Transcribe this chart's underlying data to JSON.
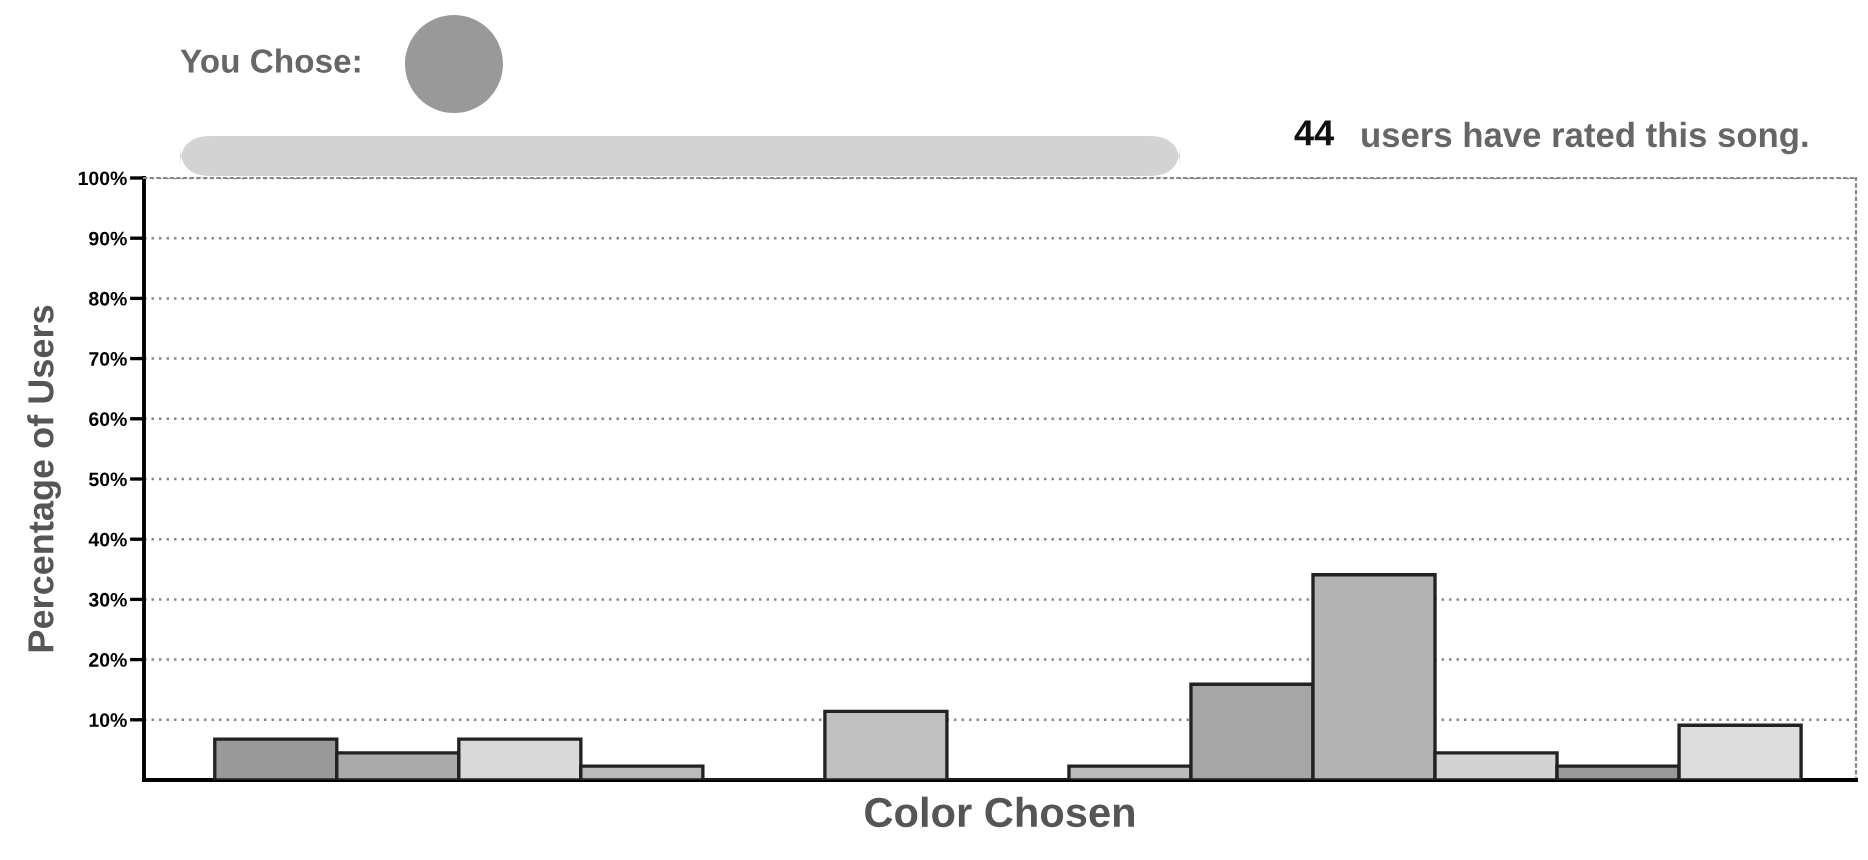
{
  "chart_data": {
    "type": "bar",
    "xlabel": "Color Chosen",
    "ylabel": "Percentage of Users",
    "annotations": [
      "You Chose:",
      "44",
      "users have rated this song."
    ],
    "categories": [
      null,
      null,
      null,
      null,
      null,
      null,
      null,
      null,
      null,
      null,
      null,
      null,
      null
    ],
    "values": [
      6.8,
      4.5,
      6.8,
      2.3,
      0,
      11.4,
      0,
      2.3,
      15.9,
      34.1,
      4.5,
      2.3,
      9.1
    ],
    "colors": [
      "#999999",
      "#aaaaaa",
      "#d9d9d9",
      "#bbbbbb",
      "#222222",
      "#c0c0c0",
      "#222222",
      "#bbbbbb",
      "#a6a6a6",
      "#b3b3b3",
      "#d3d3d3",
      "#999999",
      "#dddddd"
    ],
    "ylim": [
      0,
      100
    ],
    "yticks": [
      {
        "value": 10,
        "label": "10%"
      },
      {
        "value": 20,
        "label": "20%"
      },
      {
        "value": 30,
        "label": "30%"
      },
      {
        "value": 40,
        "label": "40%"
      },
      {
        "value": 50,
        "label": "50%"
      },
      {
        "value": 60,
        "label": "60%"
      },
      {
        "value": 70,
        "label": "70%"
      },
      {
        "value": 80,
        "label": "80%"
      },
      {
        "value": 90,
        "label": "90%"
      },
      {
        "value": 100,
        "label": "100%"
      }
    ],
    "tick_labels": "y",
    "grid": "y",
    "legend": false
  }
}
